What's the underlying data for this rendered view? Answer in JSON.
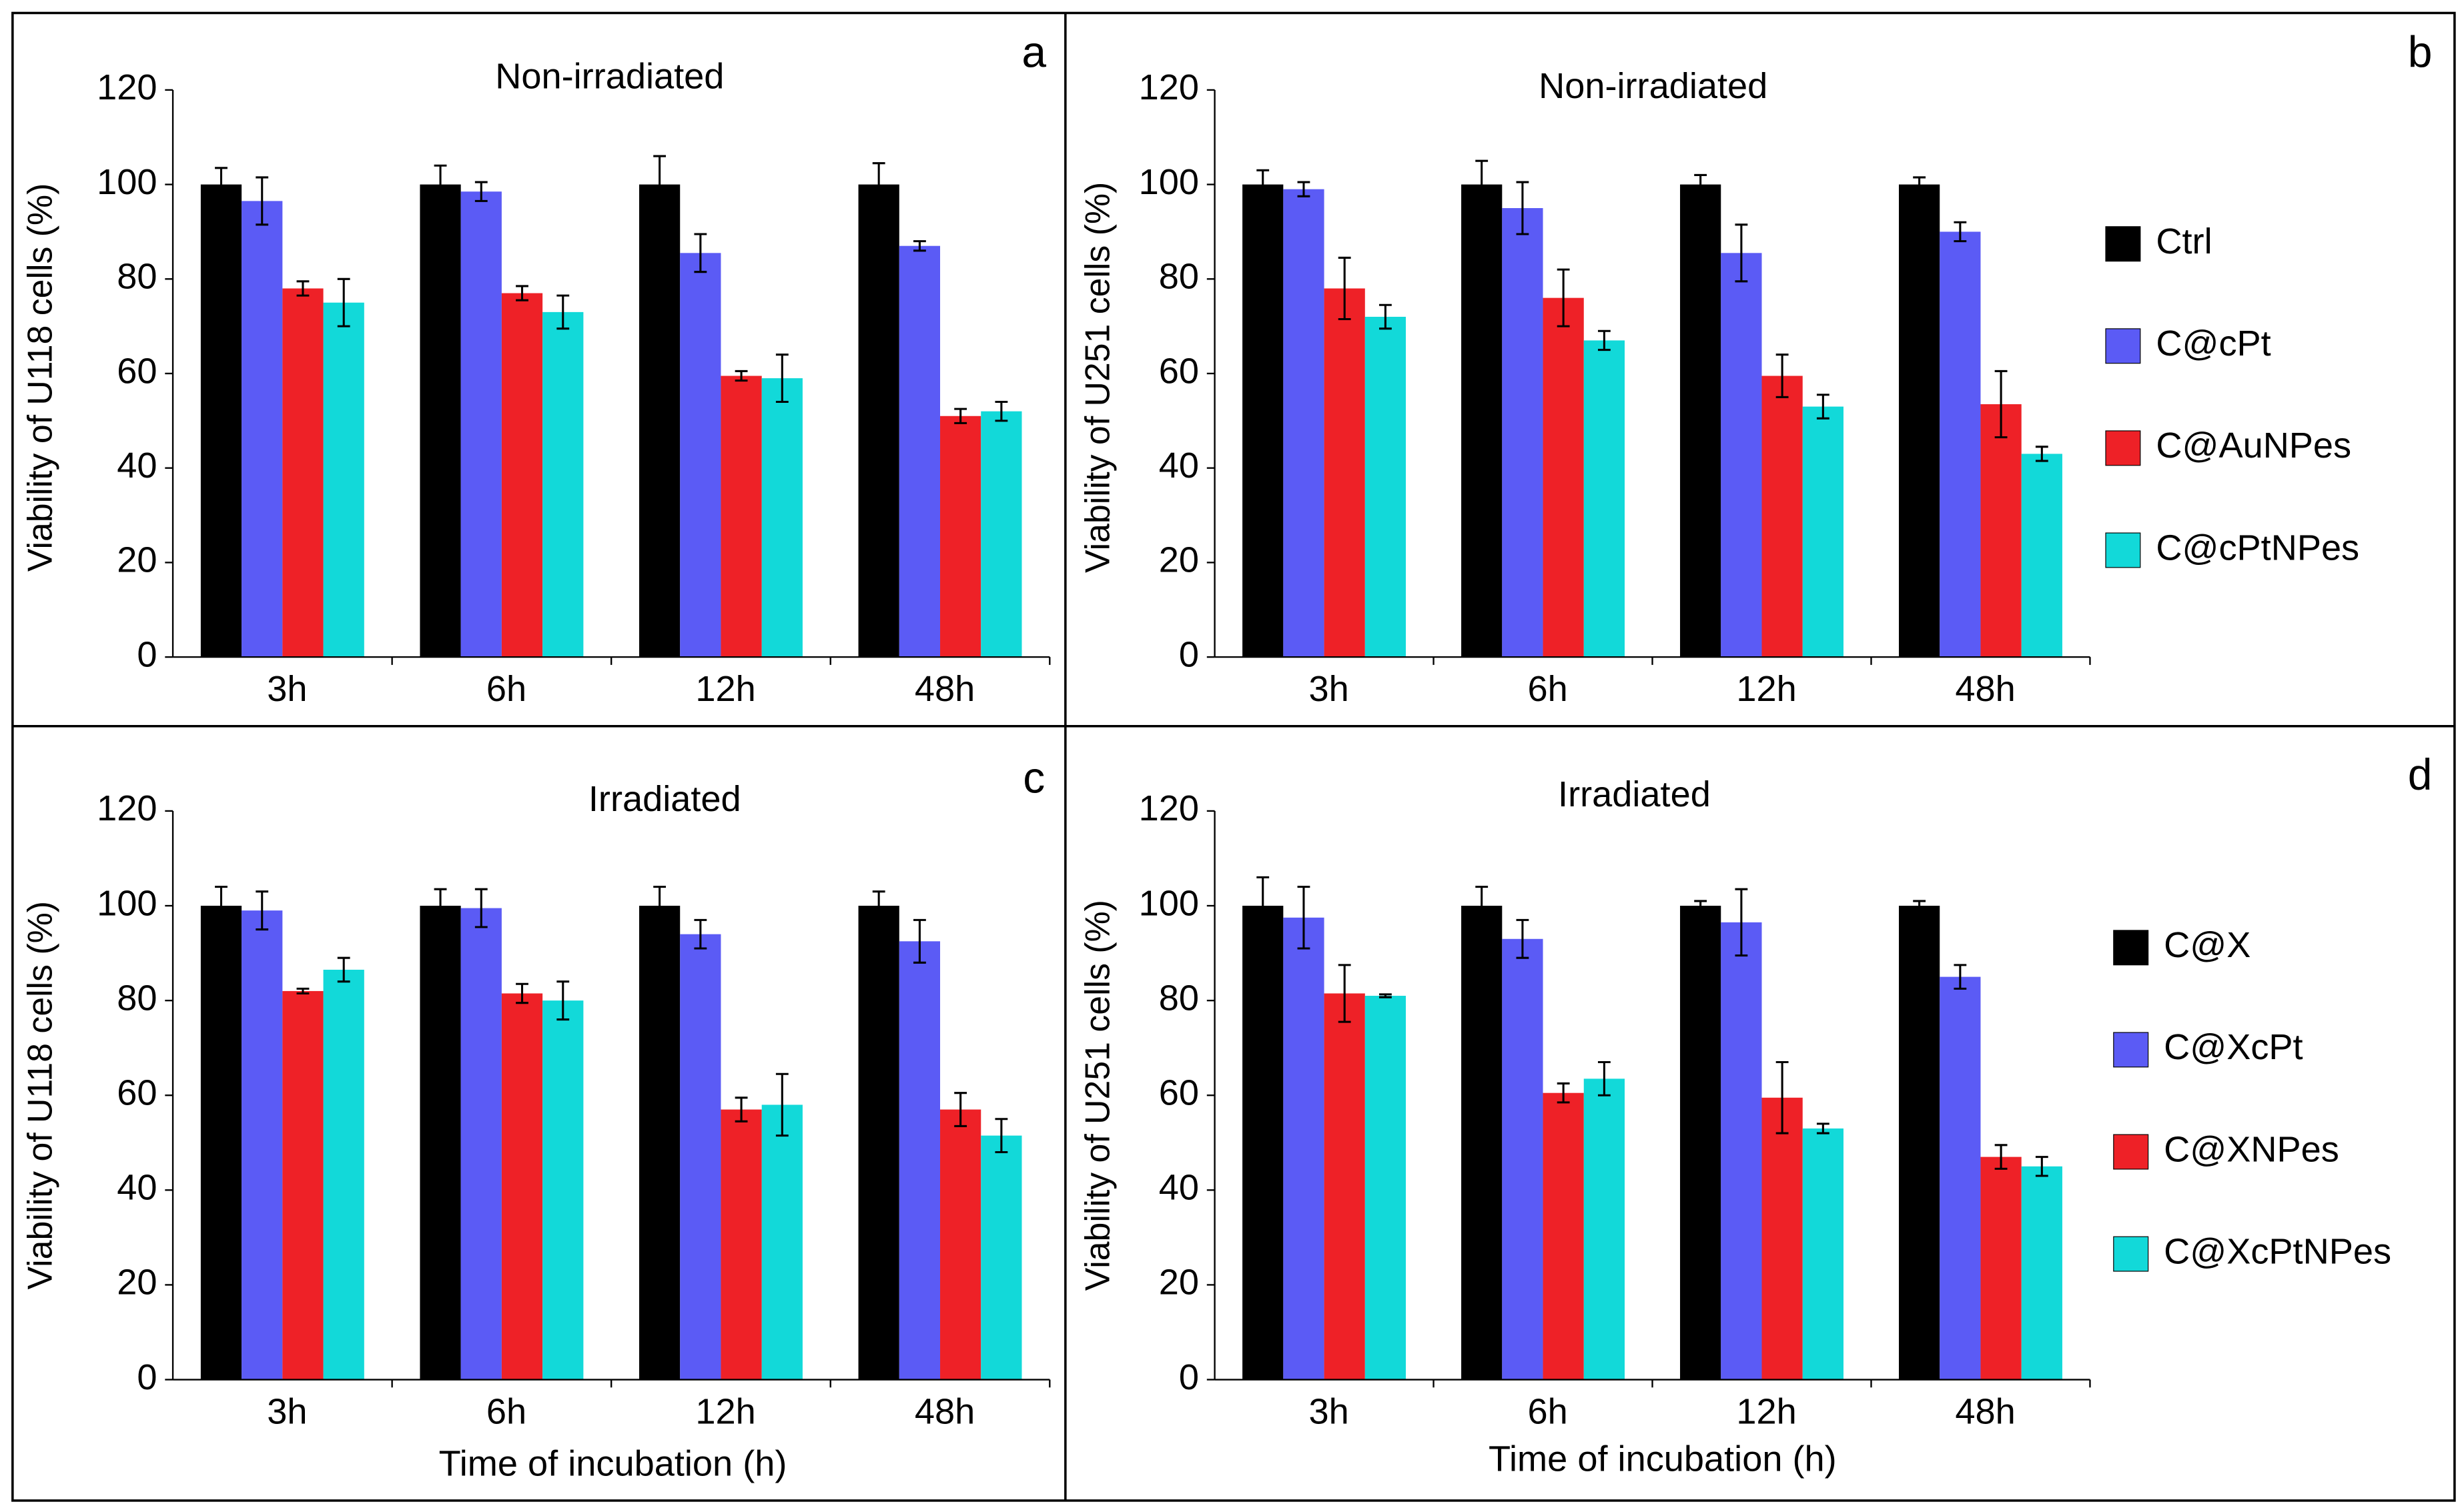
{
  "chart_data": [
    {
      "type": "bar",
      "panel": "a",
      "title": "Non-irradiated",
      "ylabel": "Viability of U118 cells (%)",
      "categories": [
        "3h",
        "6h",
        "12h",
        "48h"
      ],
      "ylim": [
        0,
        120
      ],
      "yticks": [
        0,
        20,
        40,
        60,
        80,
        100,
        120
      ],
      "series": [
        {
          "color": "#000000",
          "values": [
            100,
            100,
            100,
            100
          ],
          "errors": [
            3.5,
            4,
            6,
            4.5
          ]
        },
        {
          "color": "#5b5bf5",
          "values": [
            96.5,
            98.5,
            85.5,
            87
          ],
          "errors": [
            5,
            2,
            4,
            1
          ]
        },
        {
          "color": "#ee2127",
          "values": [
            78,
            77,
            59.5,
            51
          ],
          "errors": [
            1.5,
            1.5,
            1,
            1.5
          ]
        },
        {
          "color": "#12d9d9",
          "values": [
            75,
            73,
            59,
            52
          ],
          "errors": [
            5,
            3.5,
            5,
            2
          ]
        }
      ]
    },
    {
      "type": "bar",
      "panel": "b",
      "title": "Non-irradiated",
      "ylabel": "Viability of U251 cells (%)",
      "categories": [
        "3h",
        "6h",
        "12h",
        "48h"
      ],
      "ylim": [
        0,
        120
      ],
      "yticks": [
        0,
        20,
        40,
        60,
        80,
        100,
        120
      ],
      "legend": "right",
      "series": [
        {
          "name": "Ctrl",
          "color": "#000000",
          "values": [
            100,
            100,
            100,
            100
          ],
          "errors": [
            3,
            5,
            2,
            1.5
          ]
        },
        {
          "name": "C@cPt",
          "color": "#5b5bf5",
          "values": [
            99,
            95,
            85.5,
            90
          ],
          "errors": [
            1.5,
            5.5,
            6,
            2
          ]
        },
        {
          "name": "C@AuNPes",
          "color": "#ee2127",
          "values": [
            78,
            76,
            59.5,
            53.5
          ],
          "errors": [
            6.5,
            6,
            4.5,
            7
          ]
        },
        {
          "name": "C@cPtNPes",
          "color": "#12d9d9",
          "values": [
            72,
            67,
            53,
            43
          ],
          "errors": [
            2.5,
            2,
            2.5,
            1.5
          ]
        }
      ]
    },
    {
      "type": "bar",
      "panel": "c",
      "title": "Irradiated",
      "ylabel": "Viability of U118 cells (%)",
      "xlabel": "Time of incubation (h)",
      "categories": [
        "3h",
        "6h",
        "12h",
        "48h"
      ],
      "ylim": [
        0,
        120
      ],
      "yticks": [
        0,
        20,
        40,
        60,
        80,
        100,
        120
      ],
      "series": [
        {
          "color": "#000000",
          "values": [
            100,
            100,
            100,
            100
          ],
          "errors": [
            4,
            3.5,
            4,
            3
          ]
        },
        {
          "color": "#5b5bf5",
          "values": [
            99,
            99.5,
            94,
            92.5
          ],
          "errors": [
            4,
            4,
            3,
            4.5
          ]
        },
        {
          "color": "#ee2127",
          "values": [
            82,
            81.5,
            57,
            57
          ],
          "errors": [
            0.5,
            2,
            2.5,
            3.5
          ]
        },
        {
          "color": "#12d9d9",
          "values": [
            86.5,
            80,
            58,
            51.5
          ],
          "errors": [
            2.5,
            4,
            6.5,
            3.5
          ]
        }
      ]
    },
    {
      "type": "bar",
      "panel": "d",
      "title": "Irradiated",
      "ylabel": "Viability of U251 cells (%)",
      "xlabel": "Time of incubation (h)",
      "categories": [
        "3h",
        "6h",
        "12h",
        "48h"
      ],
      "ylim": [
        0,
        120
      ],
      "yticks": [
        0,
        20,
        40,
        60,
        80,
        100,
        120
      ],
      "legend": "right",
      "series": [
        {
          "name": "C@X",
          "color": "#000000",
          "values": [
            100,
            100,
            100,
            100
          ],
          "errors": [
            6,
            4,
            1,
            1
          ]
        },
        {
          "name": "C@XcPt",
          "color": "#5b5bf5",
          "values": [
            97.5,
            93,
            96.5,
            85
          ],
          "errors": [
            6.5,
            4,
            7,
            2.5
          ]
        },
        {
          "name": "C@XNPes",
          "color": "#ee2127",
          "values": [
            81.5,
            60.5,
            59.5,
            47
          ],
          "errors": [
            6,
            2,
            7.5,
            2.5
          ]
        },
        {
          "name": "C@XcPtNPes",
          "color": "#12d9d9",
          "values": [
            81,
            63.5,
            53,
            45
          ],
          "errors": [
            0.3,
            3.5,
            1,
            2
          ]
        }
      ]
    }
  ]
}
